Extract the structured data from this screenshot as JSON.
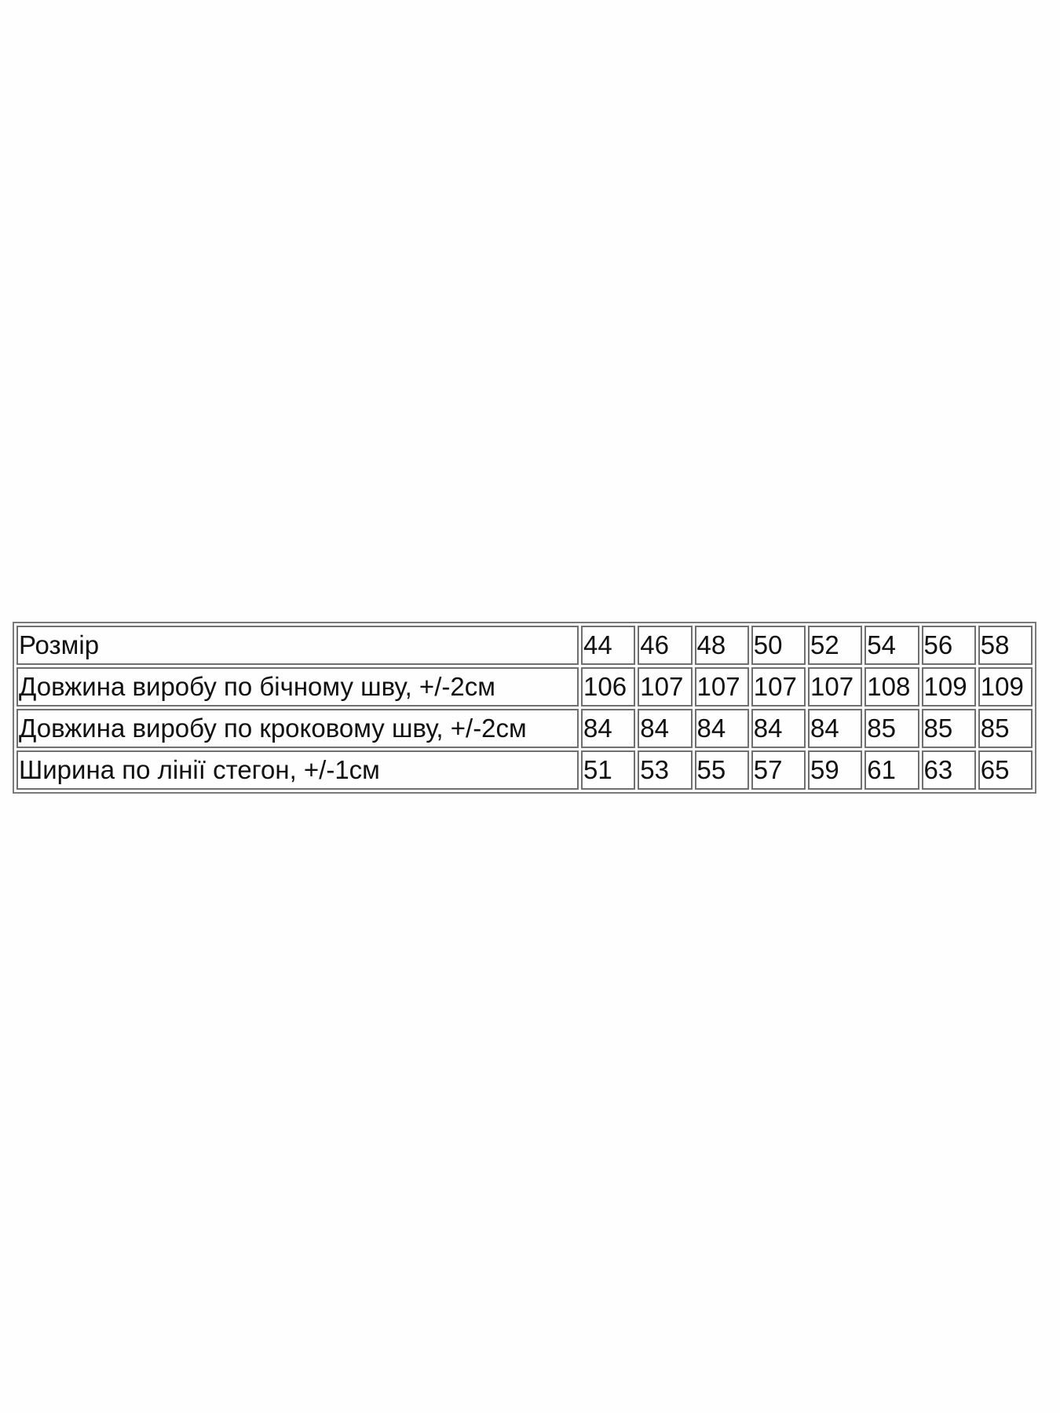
{
  "size_table": {
    "header": {
      "label": "Розмір",
      "values": [
        "44",
        "46",
        "48",
        "50",
        "52",
        "54",
        "56",
        "58"
      ]
    },
    "rows": [
      {
        "label": "Довжина виробу по бічному шву, +/-2см",
        "values": [
          "106",
          "107",
          "107",
          "107",
          "107",
          "108",
          "109",
          "109"
        ]
      },
      {
        "label": "Довжина виробу по кроковому шву, +/-2см",
        "values": [
          "84",
          "84",
          "84",
          "84",
          "84",
          "85",
          "85",
          "85"
        ]
      },
      {
        "label": "Ширина по лінії стегон, +/-1см",
        "values": [
          "51",
          "53",
          "55",
          "57",
          "59",
          "61",
          "63",
          "65"
        ]
      }
    ]
  }
}
